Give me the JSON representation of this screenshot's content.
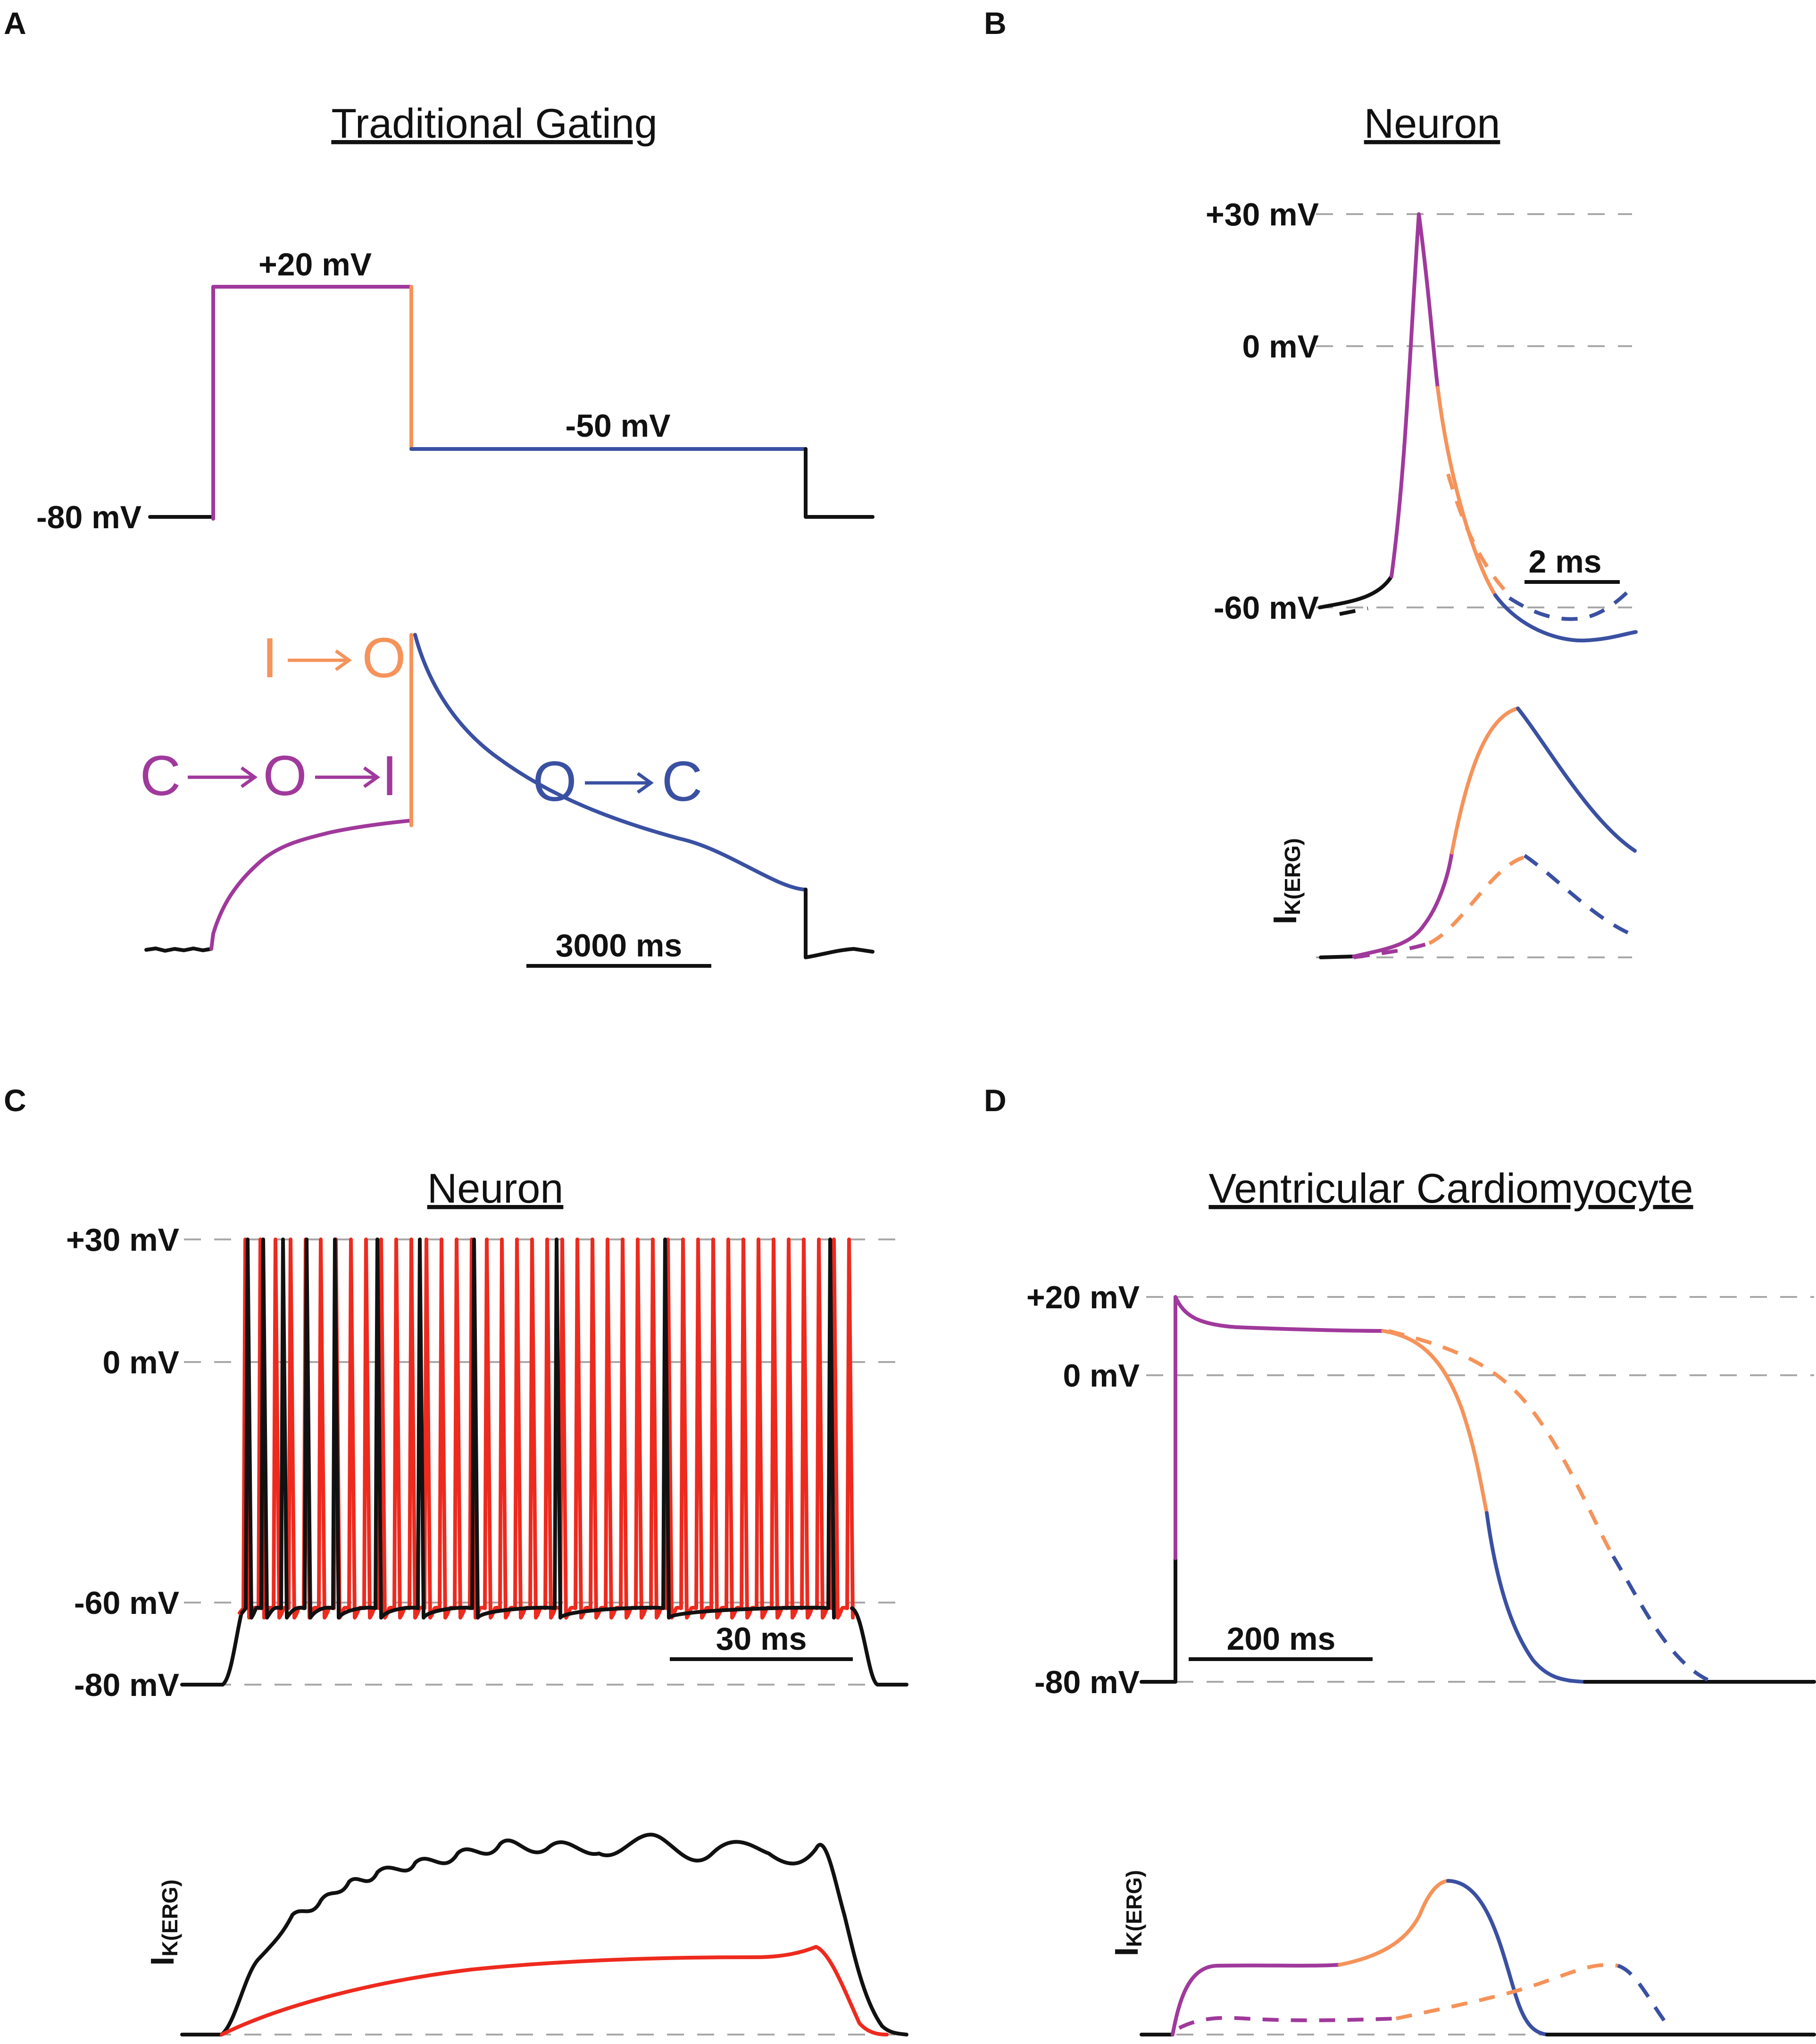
{
  "colors": {
    "purple": "#a0399c",
    "orange": "#f5935a",
    "blue": "#3a50a2",
    "red": "#ee2a1e",
    "black": "#111111",
    "guide": "#a8a8a8"
  },
  "panelA": {
    "letter": "A",
    "title": "Traditional Gating",
    "v_hold": "-80 mV",
    "v_step": "+20 mV",
    "v_tail": "-50 mV",
    "state_io_from": "I",
    "state_io_to": "O",
    "state_coi_1": "C",
    "state_coi_2": "O",
    "state_coi_3": "I",
    "state_oc_1": "O",
    "state_oc_2": "C",
    "scale_bar": "3000 ms"
  },
  "panelB": {
    "letter": "B",
    "title": "Neuron",
    "v_top": "+30 mV",
    "v_zero": "0 mV",
    "v_low": "-60 mV",
    "scale_bar": "2 ms",
    "current_label_main": "I",
    "current_label_sub": "K(ERG)"
  },
  "panelC": {
    "letter": "C",
    "title": "Neuron",
    "v_top": "+30 mV",
    "v_zero": "0 mV",
    "v_mid": "-60 mV",
    "v_low": "-80 mV",
    "scale_bar": "30 ms",
    "current_label_main": "I",
    "current_label_sub": "K(ERG)"
  },
  "panelD": {
    "letter": "D",
    "title": "Ventricular Cardiomyocyte",
    "v_top": "+20 mV",
    "v_zero": "0 mV",
    "v_low": "-80 mV",
    "scale_bar": "200 ms",
    "current_label_main": "I",
    "current_label_sub": "K(ERG)"
  }
}
